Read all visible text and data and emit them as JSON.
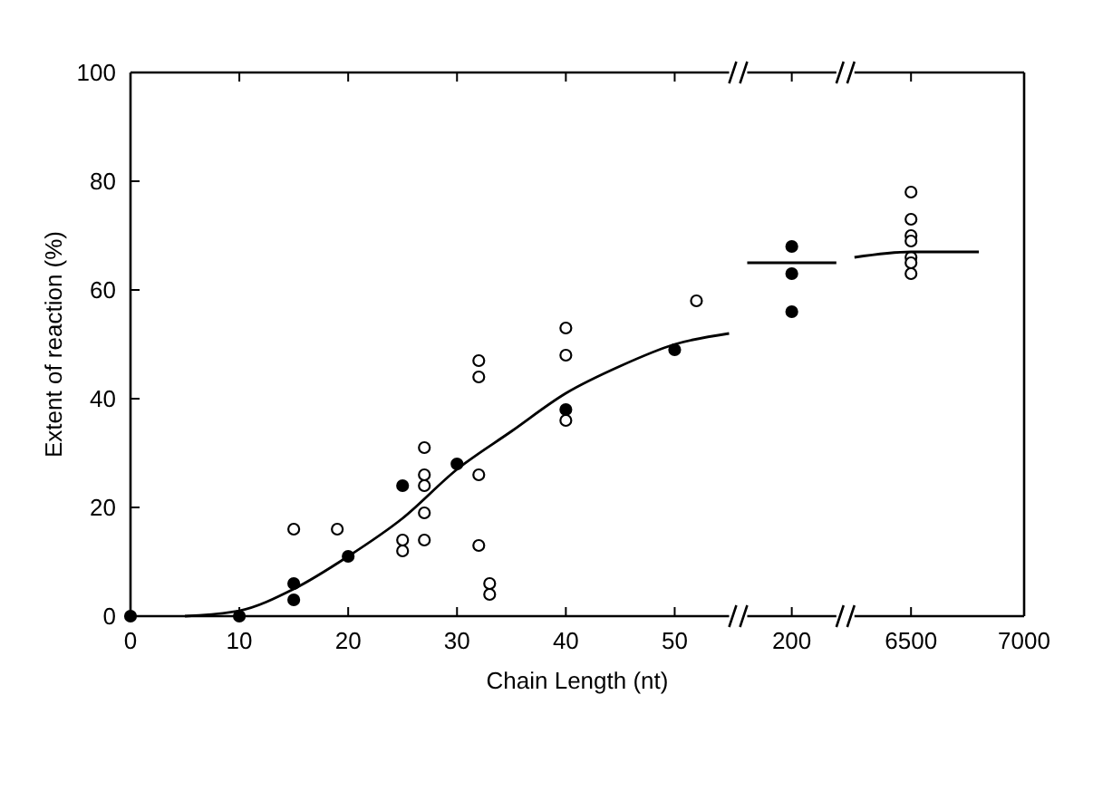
{
  "chart_data": [
    {
      "type": "scatter",
      "xlabel": "Chain Length (nt)",
      "ylabel": "Extent of reaction (%)",
      "xlim": [
        0,
        55
      ],
      "ylim": [
        0,
        100
      ],
      "xticks": [
        0,
        10,
        20,
        30,
        40,
        50
      ],
      "yticks": [
        0,
        20,
        40,
        60,
        80,
        100
      ],
      "grid": false,
      "series": [
        {
          "color": "#000000",
          "marker": "circle",
          "x": [
            0,
            10,
            15,
            15,
            20,
            25,
            30,
            40,
            50
          ],
          "values": [
            0,
            0,
            6,
            3,
            11,
            24,
            28,
            38,
            49
          ]
        },
        {
          "color": "#ffffff",
          "marker": "circle",
          "x": [
            15,
            19,
            25,
            25,
            27,
            27,
            27,
            27,
            27,
            32,
            32,
            32,
            32,
            33,
            33,
            40,
            40,
            40,
            52
          ],
          "values": [
            16,
            16,
            14,
            12,
            31,
            26,
            24,
            19,
            14,
            47,
            44,
            26,
            13,
            6,
            4,
            53,
            48,
            36,
            58
          ]
        },
        {
          "type": "line",
          "marker": "none",
          "color": "#000000",
          "x": [
            5,
            10,
            15,
            20,
            25,
            30,
            35,
            40,
            45,
            50,
            55
          ],
          "values": [
            0,
            1,
            5,
            11,
            18,
            27,
            34,
            41,
            46,
            50,
            52
          ]
        }
      ]
    },
    {
      "type": "scatter",
      "categories": [
        "200"
      ],
      "ylim": [
        0,
        100
      ],
      "tick_labels": "x",
      "series": [
        {
          "color": "#000000",
          "marker": "circle",
          "x": [
            "200",
            "200",
            "200"
          ],
          "values": [
            68,
            63,
            56
          ]
        }
      ],
      "ref_lines": [
        {
          "axis": "y",
          "value": 65,
          "color": "#000000"
        }
      ]
    },
    {
      "type": "scatter",
      "xlim": [
        6250,
        7000
      ],
      "xticks": [
        6500,
        7000
      ],
      "ylim": [
        0,
        100
      ],
      "tick_labels": "x",
      "series": [
        {
          "color": "#ffffff",
          "marker": "circle",
          "x": [
            6500,
            6500,
            6500,
            6500,
            6500,
            6500,
            6500
          ],
          "values": [
            78,
            73,
            70,
            69,
            66,
            65,
            63
          ]
        },
        {
          "type": "line",
          "marker": "none",
          "color": "#000000",
          "x": [
            6250,
            6500,
            6800
          ],
          "values": [
            66,
            67,
            67
          ]
        }
      ]
    }
  ]
}
